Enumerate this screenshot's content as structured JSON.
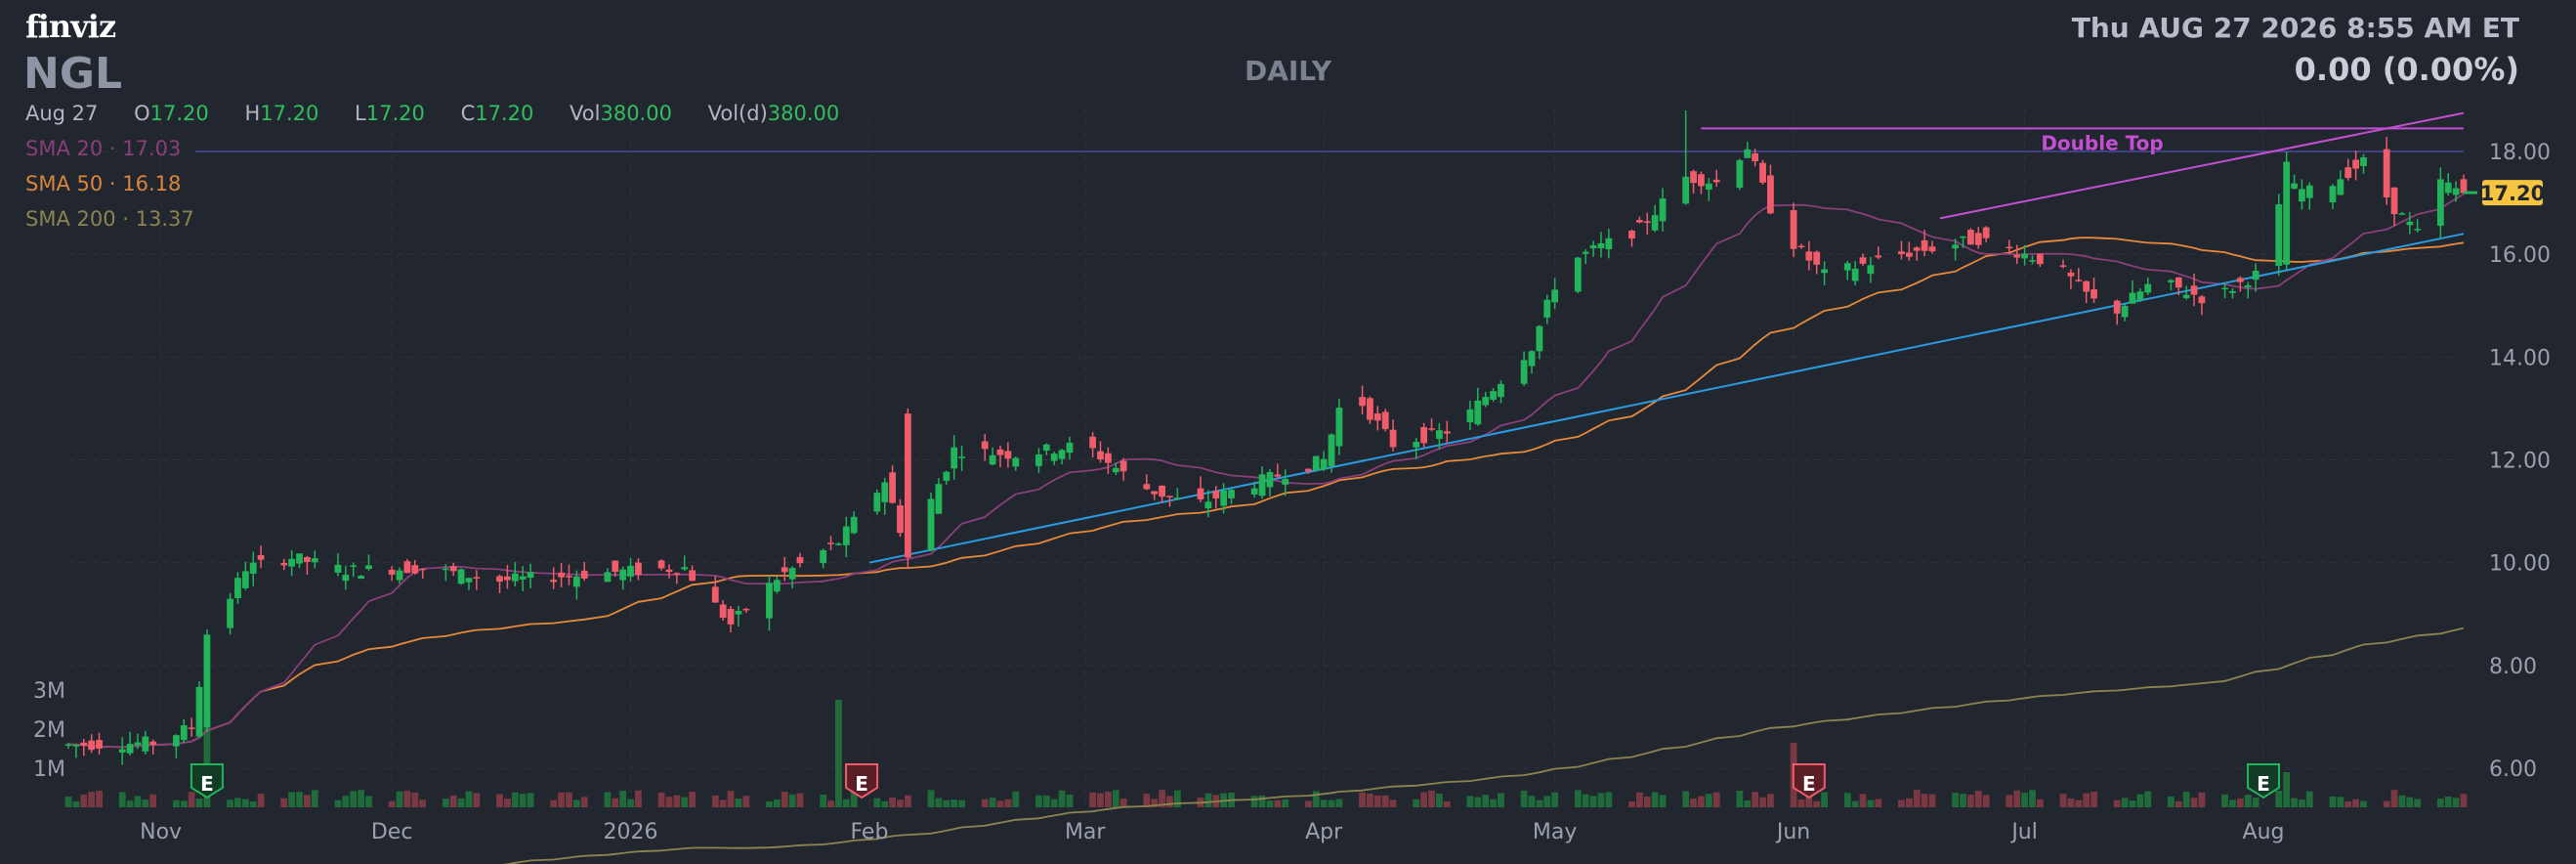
{
  "header": {
    "logo": "finviz",
    "ticker": "NGL",
    "timeframe": "DAILY",
    "datetime": "Thu AUG 27 2026 8:55 AM ET",
    "change": "0.00 (0.00%)"
  },
  "ohlc": {
    "date": "Aug 27",
    "o_label": "O",
    "o": "17.20",
    "h_label": "H",
    "h": "17.20",
    "l_label": "L",
    "l": "17.20",
    "c_label": "C",
    "c": "17.20",
    "vol_label": "Vol",
    "vol": "380.00",
    "vold_label": "Vol(d)",
    "vold": "380.00"
  },
  "sma": {
    "sma20": "SMA 20 · 17.03",
    "sma50": "SMA 50 · 16.18",
    "sma200": "SMA 200 · 13.37"
  },
  "colors": {
    "up": "#22b45a",
    "down": "#f15c6b",
    "sma20": "#8a3f7a",
    "sma50": "#e8893a",
    "sma200": "#8c8450",
    "trendline": "#2a9be0",
    "pattern": "#c44fd2",
    "hline": "#4a4a9e",
    "grid": "#2e333d",
    "price_tag": "#f5c542"
  },
  "chart_data": {
    "type": "candlestick",
    "y_ticks": [
      "6.00",
      "8.00",
      "10.00",
      "12.00",
      "14.00",
      "16.00",
      "18.00"
    ],
    "ylim": [
      5.6,
      19.0
    ],
    "x_labels": [
      "Nov",
      "Dec",
      "2026",
      "Feb",
      "Mar",
      "Apr",
      "May",
      "Jun",
      "Jul",
      "Aug"
    ],
    "x_label_dates": [
      "2025-11-01",
      "2025-12-01",
      "2026-01-01",
      "2026-02-01",
      "2026-03-01",
      "2026-04-01",
      "2026-05-01",
      "2026-06-01",
      "2026-07-01",
      "2026-08-01"
    ],
    "first_date": "2025-10-20",
    "last_date": "2026-08-27",
    "volume_ticks": [
      "1M",
      "2M",
      "3M"
    ],
    "volume_values": [
      1,
      2,
      3
    ],
    "last_price": "17.20",
    "pattern_label": "Double Top",
    "earnings_label": "E",
    "earnings_dates": [
      "2025-11-07",
      "2026-01-31",
      "2026-06-03",
      "2026-08-01"
    ],
    "horizontal_line": 18.0,
    "pattern_start": "2026-05-20",
    "pattern_level": 18.45,
    "upper_trend": [
      [
        "2026-06-20",
        16.7
      ],
      [
        "2026-08-27",
        18.75
      ]
    ],
    "lower_trend": [
      [
        "2026-02-01",
        10.0
      ],
      [
        "2026-08-27",
        16.4
      ]
    ],
    "key_closes": [
      [
        "2025-10-20",
        6.45
      ],
      [
        "2025-10-31",
        6.5
      ],
      [
        "2025-11-05",
        6.8
      ],
      [
        "2025-11-07",
        8.5
      ],
      [
        "2025-11-12",
        9.9
      ],
      [
        "2025-11-18",
        10.1
      ],
      [
        "2025-11-25",
        9.85
      ],
      [
        "2025-12-05",
        9.9
      ],
      [
        "2025-12-15",
        9.65
      ],
      [
        "2025-12-28",
        9.8
      ],
      [
        "2026-01-08",
        9.9
      ],
      [
        "2026-01-14",
        8.8
      ],
      [
        "2026-01-20",
        9.7
      ],
      [
        "2026-01-28",
        10.4
      ],
      [
        "2026-02-03",
        11.6
      ],
      [
        "2026-02-06",
        10.2
      ],
      [
        "2026-02-12",
        12.2
      ],
      [
        "2026-02-20",
        12.1
      ],
      [
        "2026-03-01",
        12.3
      ],
      [
        "2026-03-08",
        11.5
      ],
      [
        "2026-03-15",
        11.1
      ],
      [
        "2026-03-22",
        11.5
      ],
      [
        "2026-04-01",
        12.0
      ],
      [
        "2026-04-04",
        13.5
      ],
      [
        "2026-04-10",
        12.3
      ],
      [
        "2026-04-18",
        12.6
      ],
      [
        "2026-04-28",
        14.2
      ],
      [
        "2026-05-02",
        15.8
      ],
      [
        "2026-05-12",
        16.5
      ],
      [
        "2026-05-18",
        17.5
      ],
      [
        "2026-05-22",
        17.4
      ],
      [
        "2026-05-26",
        18.1
      ],
      [
        "2026-05-30",
        16.5
      ],
      [
        "2026-06-05",
        15.6
      ],
      [
        "2026-06-15",
        16.0
      ],
      [
        "2026-06-25",
        16.3
      ],
      [
        "2026-07-05",
        15.8
      ],
      [
        "2026-07-12",
        14.8
      ],
      [
        "2026-07-18",
        15.5
      ],
      [
        "2026-07-25",
        15.1
      ],
      [
        "2026-07-31",
        15.6
      ],
      [
        "2026-08-04",
        17.3
      ],
      [
        "2026-08-08",
        17.2
      ],
      [
        "2026-08-14",
        17.8
      ],
      [
        "2026-08-18",
        16.9
      ],
      [
        "2026-08-21",
        16.4
      ],
      [
        "2026-08-24",
        17.4
      ],
      [
        "2026-08-27",
        17.2
      ]
    ],
    "volume_spikes": [
      [
        "2025-11-07",
        2.4
      ],
      [
        "2026-01-28",
        2.75
      ],
      [
        "2026-06-01",
        1.65
      ],
      [
        "2026-08-04",
        0.9
      ]
    ]
  }
}
